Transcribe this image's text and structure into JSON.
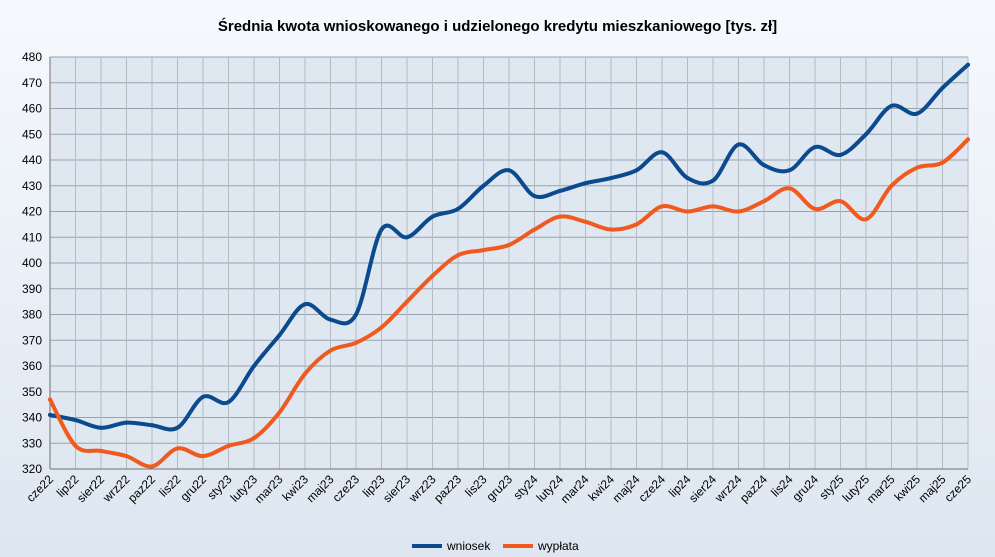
{
  "chart_data": {
    "type": "line",
    "title": "Średnia kwota wnioskowanego i udzielonego kredytu mieszkaniowego [tys. zł]",
    "xlabel": "",
    "ylabel": "",
    "ylim": [
      320,
      480
    ],
    "yticks": [
      320,
      330,
      340,
      350,
      360,
      370,
      380,
      390,
      400,
      410,
      420,
      430,
      440,
      450,
      460,
      470,
      480
    ],
    "grid": true,
    "legend_position": "bottom",
    "categories": [
      "cze22",
      "lip22",
      "sier22",
      "wrz22",
      "paz22",
      "lis22",
      "gru22",
      "sty23",
      "luty23",
      "mar23",
      "kwi23",
      "maj23",
      "cze23",
      "lip23",
      "sier23",
      "wrz23",
      "paz23",
      "lis23",
      "gru23",
      "sty24",
      "luty24",
      "mar24",
      "kwi24",
      "maj24",
      "cze24",
      "lip24",
      "sier24",
      "wrz24",
      "paz24",
      "lis24",
      "gru24",
      "sty25",
      "luty25",
      "mar25",
      "kwi25",
      "maj25",
      "cze25"
    ],
    "series": [
      {
        "name": "wniosek",
        "color": "#0b4a8f",
        "values": [
          341,
          339,
          336,
          338,
          337,
          336,
          348,
          346,
          360,
          372,
          384,
          378,
          380,
          413,
          410,
          418,
          421,
          430,
          436,
          426,
          428,
          431,
          433,
          436,
          443,
          433,
          432,
          446,
          438,
          436,
          445,
          442,
          450,
          461,
          458,
          468,
          477
        ]
      },
      {
        "name": "wypłata",
        "color": "#f05a1e",
        "values": [
          347,
          329,
          327,
          325,
          321,
          328,
          325,
          329,
          332,
          342,
          357,
          366,
          369,
          375,
          385,
          395,
          403,
          405,
          407,
          413,
          418,
          416,
          413,
          415,
          422,
          420,
          422,
          420,
          424,
          429,
          421,
          424,
          417,
          430,
          437,
          439,
          448
        ]
      }
    ]
  }
}
